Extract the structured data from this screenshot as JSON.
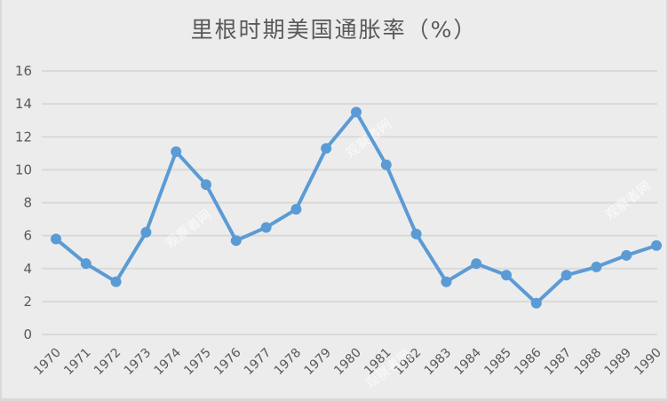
{
  "title": "里根时期美国通胀率（%）",
  "watermark": "观察者网",
  "colors": {
    "background": "#ececec",
    "line": "#5b9bd5",
    "grid": "#d9d9d9",
    "text": "#595959"
  },
  "chart_data": {
    "type": "line",
    "title": "里根时期美国通胀率（%）",
    "xlabel": "",
    "ylabel": "",
    "categories": [
      "1970",
      "1971",
      "1972",
      "1973",
      "1974",
      "1975",
      "1976",
      "1977",
      "1978",
      "1979",
      "1980",
      "1981",
      "1982",
      "1983",
      "1984",
      "1985",
      "1986",
      "1987",
      "1988",
      "1989",
      "1990"
    ],
    "series": [
      {
        "name": "通胀率（%）",
        "values": [
          5.8,
          4.3,
          3.2,
          6.2,
          11.1,
          9.1,
          5.7,
          6.5,
          7.6,
          11.3,
          13.5,
          10.3,
          6.1,
          3.2,
          4.3,
          3.6,
          1.9,
          3.6,
          4.1,
          4.8,
          5.4
        ]
      }
    ],
    "ylim": [
      0,
      16
    ],
    "yticks": [
      0,
      2,
      4,
      6,
      8,
      10,
      12,
      14,
      16
    ],
    "grid": true,
    "legend": "none",
    "markers": true,
    "xtick_rotation": -45
  }
}
